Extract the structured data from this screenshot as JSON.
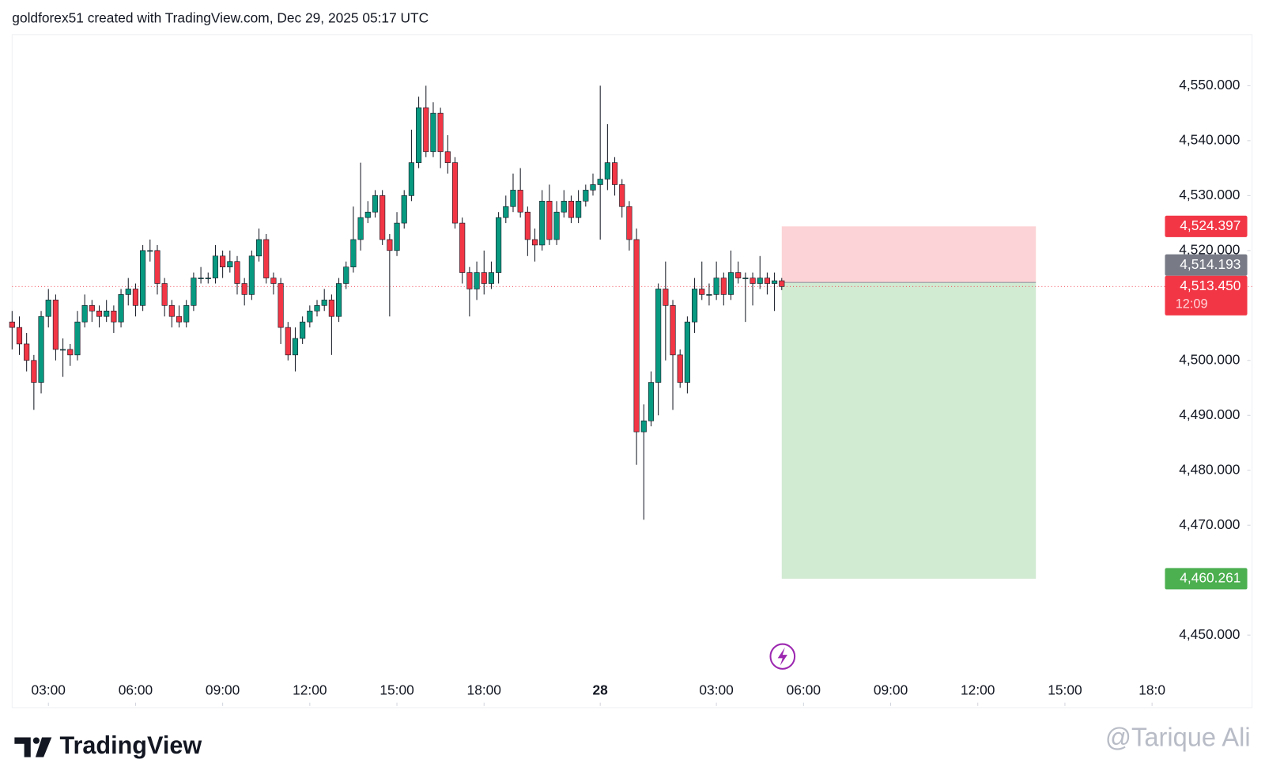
{
  "header": "goldforex51 created with TradingView.com, Dec 29, 2025 05:17 UTC",
  "footer": {
    "brand": "TradingView",
    "watermark": "@Tarique Ali"
  },
  "chart_data": {
    "type": "candlestick",
    "up_color": "#089981",
    "down_color": "#f23645",
    "open": [
      4507,
      4506,
      4503,
      4500,
      4496,
      4508,
      4511,
      4502,
      4502,
      4501,
      4507,
      4510,
      4509,
      4508,
      4509,
      4507,
      4512,
      4513,
      4510,
      4520,
      4520,
      4514,
      4510,
      4508,
      4507,
      4510,
      4515,
      4515,
      4515,
      4519,
      4517,
      4518,
      4514,
      4512,
      4519,
      4522,
      4515,
      4514,
      4506,
      4501,
      4504,
      4507,
      4509,
      4510,
      4511,
      4508,
      4514,
      4517,
      4522,
      4526,
      4527,
      4530,
      4522,
      4520,
      4525,
      4530,
      4536,
      4546,
      4538,
      4545,
      4538,
      4536,
      4525,
      4516,
      4513,
      4516,
      4514,
      4516,
      4526,
      4528,
      4531,
      4527,
      4522,
      4521,
      4529,
      4522,
      4527,
      4529,
      4526,
      4529,
      4531,
      4532,
      4533,
      4536,
      4532,
      4528,
      4522,
      4487,
      4489,
      4496,
      4513,
      4510,
      4501,
      4496,
      4507,
      4513,
      4512,
      4512,
      4515,
      4512,
      4516,
      4515,
      4515,
      4514,
      4515,
      4514,
      4514.5
    ],
    "high": [
      4509,
      4508,
      4505,
      4501,
      4509,
      4513,
      4512,
      4504,
      4503,
      4509,
      4512,
      4511,
      4510,
      4511,
      4510,
      4513,
      4515,
      4514,
      4521,
      4522,
      4521,
      4515,
      4511,
      4510,
      4511,
      4516,
      4517,
      4516,
      4521,
      4520,
      4520,
      4519,
      4515,
      4520,
      4524,
      4523,
      4516,
      4515,
      4507,
      4506,
      4508,
      4510,
      4511,
      4513,
      4512,
      4515,
      4518,
      4528,
      4536,
      4529,
      4531,
      4531,
      4523,
      4527,
      4531,
      4542,
      4548,
      4550,
      4547,
      4546,
      4541,
      4537,
      4526,
      4517,
      4518,
      4520,
      4518,
      4527,
      4530,
      4534,
      4535,
      4528,
      4524,
      4531,
      4532,
      4529,
      4531,
      4530,
      4531,
      4532,
      4534,
      4550,
      4543,
      4537,
      4533,
      4529,
      4524,
      4492,
      4498,
      4514,
      4518,
      4511,
      4502,
      4508,
      4515,
      4518,
      4514,
      4518,
      4516,
      4520,
      4518,
      4516,
      4516,
      4519,
      4516,
      4516,
      4515
    ],
    "low": [
      4502,
      4501,
      4498,
      4491,
      4494,
      4506,
      4500,
      4497,
      4499,
      4500,
      4506,
      4507,
      4506,
      4507,
      4505,
      4506,
      4510,
      4508,
      4509,
      4518,
      4512,
      4508,
      4506,
      4506,
      4506,
      4509,
      4514,
      4514,
      4514,
      4515,
      4516,
      4512,
      4510,
      4511,
      4518,
      4514,
      4512,
      4503,
      4500,
      4498,
      4503,
      4506,
      4508,
      4509,
      4501,
      4507,
      4513,
      4516,
      4520,
      4525,
      4526,
      4521,
      4508,
      4519,
      4524,
      4529,
      4535,
      4537,
      4537,
      4535,
      4534,
      4524,
      4514,
      4508,
      4511,
      4512,
      4513,
      4514,
      4525,
      4527,
      4526,
      4519,
      4518,
      4520,
      4521,
      4521,
      4526,
      4525,
      4525,
      4528,
      4530,
      4522,
      4531,
      4530,
      4526,
      4520,
      4481,
      4471,
      4488,
      4490,
      4500,
      4491,
      4495,
      4494,
      4505,
      4511,
      4510,
      4511,
      4510,
      4511,
      4514,
      4507,
      4510,
      4513,
      4512,
      4509,
      4512.8
    ],
    "close": [
      4506,
      4503,
      4500,
      4496,
      4508,
      4511,
      4502,
      4502,
      4501,
      4507,
      4510,
      4509,
      4508,
      4509,
      4507,
      4512,
      4513,
      4510,
      4520,
      4520,
      4514,
      4510,
      4508,
      4507,
      4510,
      4515,
      4515,
      4515,
      4519,
      4517,
      4518,
      4514,
      4512,
      4519,
      4522,
      4515,
      4514,
      4506,
      4501,
      4504,
      4507,
      4509,
      4510,
      4511,
      4508,
      4514,
      4517,
      4522,
      4526,
      4527,
      4530,
      4522,
      4520,
      4525,
      4530,
      4536,
      4546,
      4538,
      4545,
      4538,
      4536,
      4525,
      4516,
      4513,
      4516,
      4514,
      4516,
      4526,
      4528,
      4531,
      4527,
      4522,
      4521,
      4529,
      4522,
      4527,
      4529,
      4526,
      4529,
      4531,
      4532,
      4533,
      4536,
      4532,
      4528,
      4522,
      4487,
      4489,
      4496,
      4513,
      4510,
      4501,
      4496,
      4507,
      4513,
      4512,
      4512,
      4515,
      4512,
      4516,
      4515,
      4515,
      4514,
      4515,
      4514,
      4514.5,
      4513.45
    ],
    "xlim": [
      0,
      170
    ],
    "xticks": [
      {
        "value": 5,
        "label": "03:00"
      },
      {
        "value": 17,
        "label": "06:00"
      },
      {
        "value": 29,
        "label": "09:00"
      },
      {
        "value": 41,
        "label": "12:00"
      },
      {
        "value": 53,
        "label": "15:00"
      },
      {
        "value": 65,
        "label": "18:00"
      },
      {
        "value": 81,
        "label": "28"
      },
      {
        "value": 97,
        "label": "03:00"
      },
      {
        "value": 109,
        "label": "06:00"
      },
      {
        "value": 121,
        "label": "09:00"
      },
      {
        "value": 133,
        "label": "12:00"
      },
      {
        "value": 145,
        "label": "15:00"
      },
      {
        "value": 157,
        "label": "18:0"
      }
    ],
    "ylim": [
      4442.8,
      4559.3
    ],
    "yticks": [
      {
        "value": 4550,
        "label": "4,550.000"
      },
      {
        "value": 4540,
        "label": "4,540.000"
      },
      {
        "value": 4530,
        "label": "4,530.000"
      },
      {
        "value": 4520,
        "label": "4,520.000"
      },
      {
        "value": 4500,
        "label": "4,500.000"
      },
      {
        "value": 4490,
        "label": "4,490.000"
      },
      {
        "value": 4480,
        "label": "4,480.000"
      },
      {
        "value": 4470,
        "label": "4,470.000"
      },
      {
        "value": 4450,
        "label": "4,450.000"
      }
    ],
    "position": {
      "entry": 4514.193,
      "entry_label": "4,514.193",
      "stop": 4524.397,
      "stop_label": "4,524.397",
      "target": 4460.261,
      "target_label": "4,460.261",
      "x_range": [
        106,
        141
      ]
    },
    "last_price": {
      "value": 4513.45,
      "label": "4,513.450",
      "countdown": "12:09"
    }
  }
}
